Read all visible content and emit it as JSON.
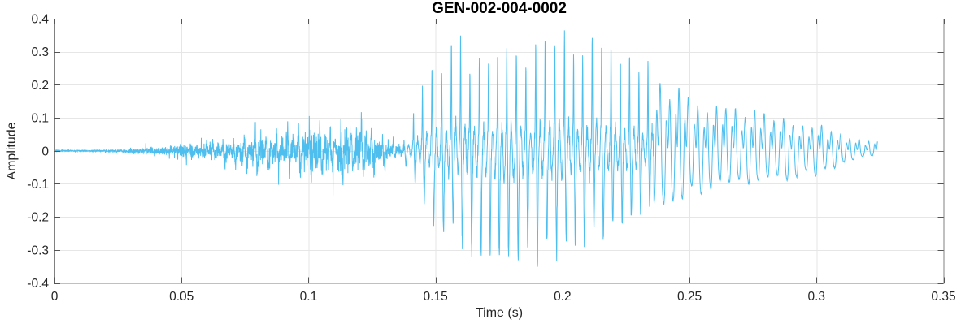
{
  "figure": {
    "title": "GEN-002-004-0002"
  },
  "chart_data": {
    "type": "line",
    "subtype": "audio-waveform",
    "title": "GEN-002-004-0002",
    "xlabel": "Time (s)",
    "ylabel": "Amplitude",
    "xlim": [
      0,
      0.35
    ],
    "ylim": [
      -0.4,
      0.4
    ],
    "grid": true,
    "legend": "none",
    "x_ticks": [
      0,
      0.05,
      0.1,
      0.15,
      0.2,
      0.25,
      0.3,
      0.35
    ],
    "x_tick_labels": [
      "0",
      "0.05",
      "0.1",
      "0.15",
      "0.2",
      "0.25",
      "0.3",
      "0.35"
    ],
    "y_ticks": [
      -0.4,
      -0.3,
      -0.2,
      -0.1,
      0,
      0.1,
      0.2,
      0.3,
      0.4
    ],
    "y_tick_labels": [
      "-0.4",
      "-0.3",
      "-0.2",
      "-0.1",
      "0",
      "0.1",
      "0.2",
      "0.3",
      "0.4"
    ],
    "line_color": "#4DBEEE",
    "duration_s": 0.324,
    "envelope": {
      "comment": "positive/negative peak-amplitude envelope read from the plot",
      "t": [
        0,
        0.018,
        0.025,
        0.035,
        0.045,
        0.055,
        0.065,
        0.075,
        0.085,
        0.092,
        0.1,
        0.106,
        0.112,
        0.12,
        0.128,
        0.134,
        0.138,
        0.142,
        0.148,
        0.155,
        0.162,
        0.17,
        0.18,
        0.19,
        0.2,
        0.208,
        0.215,
        0.222,
        0.23,
        0.238,
        0.248,
        0.258,
        0.268,
        0.28,
        0.292,
        0.302,
        0.31,
        0.318,
        0.324
      ],
      "pos": [
        0.004,
        0.006,
        0.012,
        0.022,
        0.035,
        0.055,
        0.085,
        0.105,
        0.13,
        0.16,
        0.205,
        0.16,
        0.155,
        0.17,
        0.12,
        0.07,
        0.05,
        0.12,
        0.26,
        0.33,
        0.3,
        0.3,
        0.3,
        0.31,
        0.355,
        0.34,
        0.31,
        0.31,
        0.28,
        0.22,
        0.18,
        0.16,
        0.14,
        0.12,
        0.1,
        0.085,
        0.06,
        0.035,
        0.045
      ],
      "neg": [
        0.004,
        0.006,
        0.012,
        0.022,
        0.035,
        0.05,
        0.075,
        0.1,
        0.12,
        0.14,
        0.17,
        0.15,
        0.16,
        0.15,
        0.12,
        0.06,
        0.05,
        0.1,
        0.2,
        0.25,
        0.29,
        0.31,
        0.35,
        0.32,
        0.32,
        0.3,
        0.29,
        0.25,
        0.23,
        0.19,
        0.16,
        0.14,
        0.12,
        0.11,
        0.09,
        0.075,
        0.05,
        0.025,
        0.015
      ]
    },
    "segments": [
      {
        "type": "noise",
        "t0": 0,
        "t1": 0.062,
        "f0": 0
      },
      {
        "type": "noisy-voiced",
        "t0": 0.062,
        "t1": 0.138,
        "f0": 240
      },
      {
        "type": "voiced",
        "t0": 0.138,
        "t1": 0.236,
        "f0": 272
      },
      {
        "type": "tail",
        "t0": 0.236,
        "t1": 0.324,
        "f0": 268
      }
    ]
  },
  "style": {
    "line_color": "#4DBEEE",
    "grid_color": "#e6e6e6",
    "box_color": "#808080",
    "tick_color": "#555555",
    "text_color": "#262626",
    "title_color": "#000000",
    "background": "#ffffff"
  }
}
